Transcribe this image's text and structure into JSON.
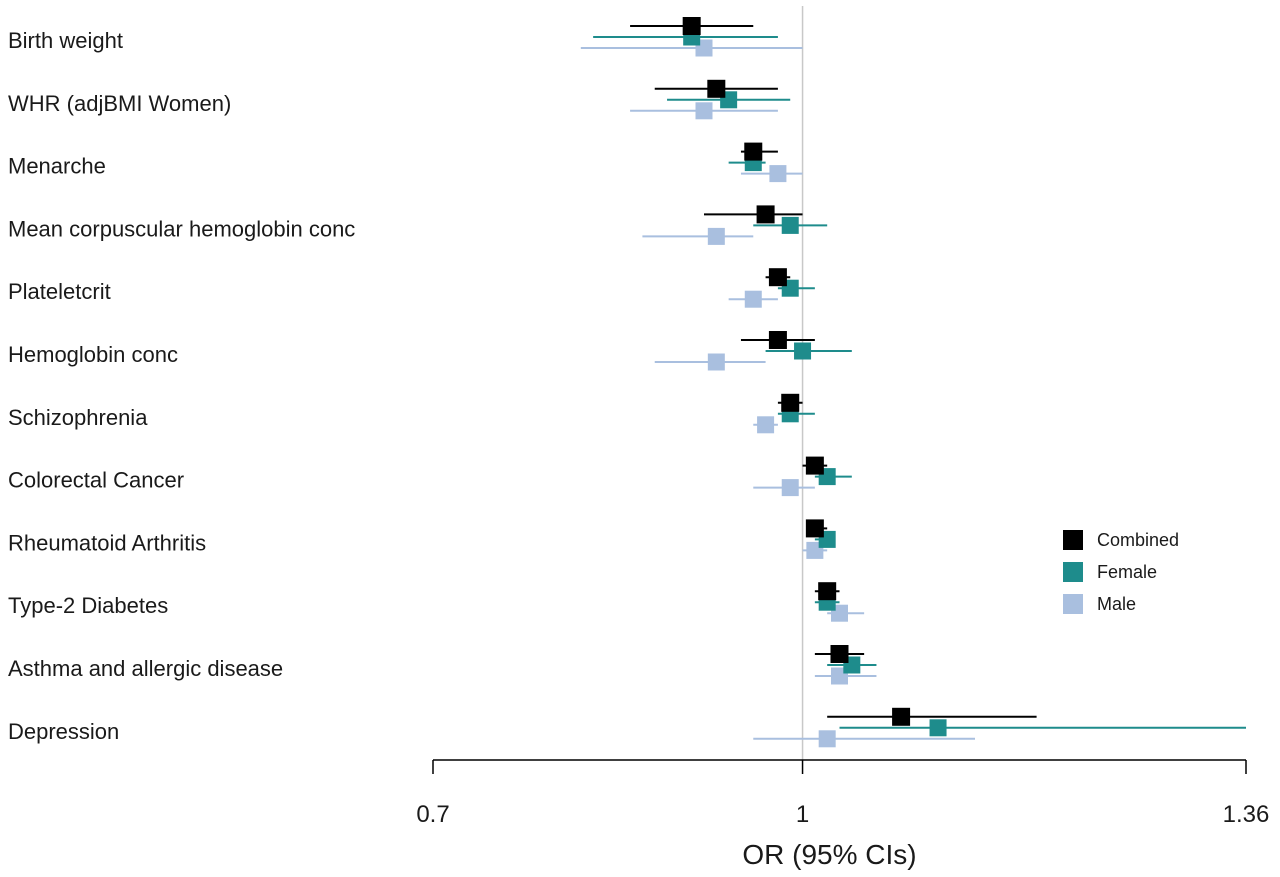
{
  "chart_data": {
    "type": "forest",
    "xlabel": "OR (95% CIs)",
    "xlim": [
      0.7,
      1.36
    ],
    "xticks": [
      0.7,
      1,
      1.36
    ],
    "xtick_labels": [
      "0.7",
      "1",
      "1.36"
    ],
    "reference_line": 1,
    "legend_position": "right",
    "series": [
      {
        "name": "Combined",
        "color": "#000000"
      },
      {
        "name": "Female",
        "color": "#1e8c8c"
      },
      {
        "name": "Male",
        "color": "#a9bfdf"
      }
    ],
    "rows": [
      {
        "label": "Birth weight",
        "combined": {
          "or": 0.91,
          "lo": 0.86,
          "hi": 0.96
        },
        "female": {
          "or": 0.91,
          "lo": 0.83,
          "hi": 0.98
        },
        "male": {
          "or": 0.92,
          "lo": 0.82,
          "hi": 1.0
        }
      },
      {
        "label": "WHR (adjBMI Women)",
        "combined": {
          "or": 0.93,
          "lo": 0.88,
          "hi": 0.98
        },
        "female": {
          "or": 0.94,
          "lo": 0.89,
          "hi": 0.99
        },
        "male": {
          "or": 0.92,
          "lo": 0.86,
          "hi": 0.98
        }
      },
      {
        "label": "Menarche",
        "combined": {
          "or": 0.96,
          "lo": 0.95,
          "hi": 0.98
        },
        "female": {
          "or": 0.96,
          "lo": 0.94,
          "hi": 0.97
        },
        "male": {
          "or": 0.98,
          "lo": 0.95,
          "hi": 1.0
        }
      },
      {
        "label": "Mean corpuscular hemoglobin conc",
        "combined": {
          "or": 0.97,
          "lo": 0.92,
          "hi": 1.0
        },
        "female": {
          "or": 0.99,
          "lo": 0.96,
          "hi": 1.02
        },
        "male": {
          "or": 0.93,
          "lo": 0.87,
          "hi": 0.96
        }
      },
      {
        "label": "Plateletcrit",
        "combined": {
          "or": 0.98,
          "lo": 0.97,
          "hi": 0.99
        },
        "female": {
          "or": 0.99,
          "lo": 0.98,
          "hi": 1.01
        },
        "male": {
          "or": 0.96,
          "lo": 0.94,
          "hi": 0.98
        }
      },
      {
        "label": "Hemoglobin conc",
        "combined": {
          "or": 0.98,
          "lo": 0.95,
          "hi": 1.01
        },
        "female": {
          "or": 1.0,
          "lo": 0.97,
          "hi": 1.04
        },
        "male": {
          "or": 0.93,
          "lo": 0.88,
          "hi": 0.97
        }
      },
      {
        "label": "Schizophrenia",
        "combined": {
          "or": 0.99,
          "lo": 0.98,
          "hi": 1.0
        },
        "female": {
          "or": 0.99,
          "lo": 0.98,
          "hi": 1.01
        },
        "male": {
          "or": 0.97,
          "lo": 0.96,
          "hi": 0.98
        }
      },
      {
        "label": "Colorectal Cancer",
        "combined": {
          "or": 1.01,
          "lo": 1.0,
          "hi": 1.02
        },
        "female": {
          "or": 1.02,
          "lo": 1.01,
          "hi": 1.04
        },
        "male": {
          "or": 0.99,
          "lo": 0.96,
          "hi": 1.01
        }
      },
      {
        "label": "Rheumatoid Arthritis",
        "combined": {
          "or": 1.01,
          "lo": 1.01,
          "hi": 1.02
        },
        "female": {
          "or": 1.02,
          "lo": 1.01,
          "hi": 1.02
        },
        "male": {
          "or": 1.01,
          "lo": 1.0,
          "hi": 1.02
        }
      },
      {
        "label": "Type-2 Diabetes",
        "combined": {
          "or": 1.02,
          "lo": 1.01,
          "hi": 1.03
        },
        "female": {
          "or": 1.02,
          "lo": 1.01,
          "hi": 1.03
        },
        "male": {
          "or": 1.03,
          "lo": 1.02,
          "hi": 1.05
        }
      },
      {
        "label": "Asthma and allergic disease",
        "combined": {
          "or": 1.03,
          "lo": 1.01,
          "hi": 1.05
        },
        "female": {
          "or": 1.04,
          "lo": 1.02,
          "hi": 1.06
        },
        "male": {
          "or": 1.03,
          "lo": 1.01,
          "hi": 1.06
        }
      },
      {
        "label": "Depression",
        "combined": {
          "or": 1.08,
          "lo": 1.02,
          "hi": 1.19
        },
        "female": {
          "or": 1.11,
          "lo": 1.03,
          "hi": 1.36
        },
        "male": {
          "or": 1.02,
          "lo": 0.96,
          "hi": 1.14
        }
      }
    ]
  }
}
